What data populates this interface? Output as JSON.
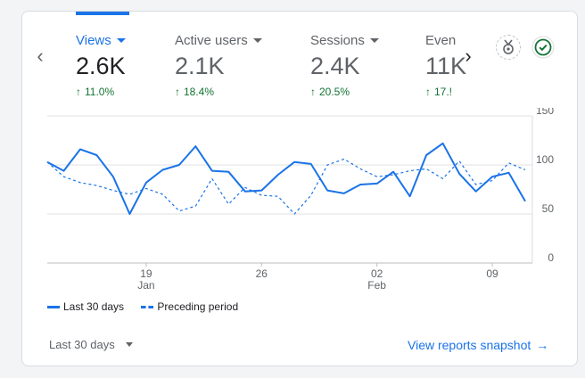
{
  "metrics": [
    {
      "name": "Views",
      "value": "2.6K",
      "change": "11.0%",
      "active": true
    },
    {
      "name": "Active users",
      "value": "2.1K",
      "change": "18.4%",
      "active": false
    },
    {
      "name": "Sessions",
      "value": "2.4K",
      "change": "20.5%",
      "active": false
    },
    {
      "name": "Even",
      "value": "11K",
      "change": "17.!",
      "active": false
    }
  ],
  "icons": {
    "prev": "chevron-left-icon",
    "next": "chevron-right-icon",
    "insights": "insights-icon",
    "status": "check-circle-icon",
    "change_arrow": "arrow-up-icon"
  },
  "colors": {
    "accent": "#1a73e8",
    "positive": "#137333",
    "grid": "#e0e0e0"
  },
  "chart_data": {
    "type": "line",
    "y_ticks": [
      "150",
      "100",
      "50",
      "0"
    ],
    "ylim": [
      0,
      150
    ],
    "x_tick_labels": [
      {
        "day": "19",
        "month": "Jan"
      },
      {
        "day": "26",
        "month": ""
      },
      {
        "day": "02",
        "month": "Feb"
      },
      {
        "day": "09",
        "month": ""
      }
    ],
    "series": [
      {
        "name": "Last 30 days",
        "style": "solid",
        "values": [
          103,
          94,
          116,
          110,
          88,
          50,
          82,
          95,
          100,
          119,
          94,
          93,
          73,
          74,
          90,
          103,
          101,
          74,
          71,
          80,
          81,
          93,
          68,
          110,
          122,
          91,
          73,
          88,
          92,
          63
        ]
      },
      {
        "name": "Preceding period",
        "style": "dashed",
        "values": [
          103,
          88,
          82,
          79,
          74,
          70,
          76,
          70,
          53,
          58,
          86,
          60,
          77,
          69,
          68,
          50,
          69,
          100,
          106,
          96,
          88,
          90,
          94,
          96,
          86,
          104,
          80,
          84,
          102,
          95
        ]
      }
    ]
  },
  "legend": {
    "current": "Last 30 days",
    "previous": "Preceding period"
  },
  "footer": {
    "date_range": "Last 30 days",
    "snapshot_link": "View reports snapshot"
  }
}
